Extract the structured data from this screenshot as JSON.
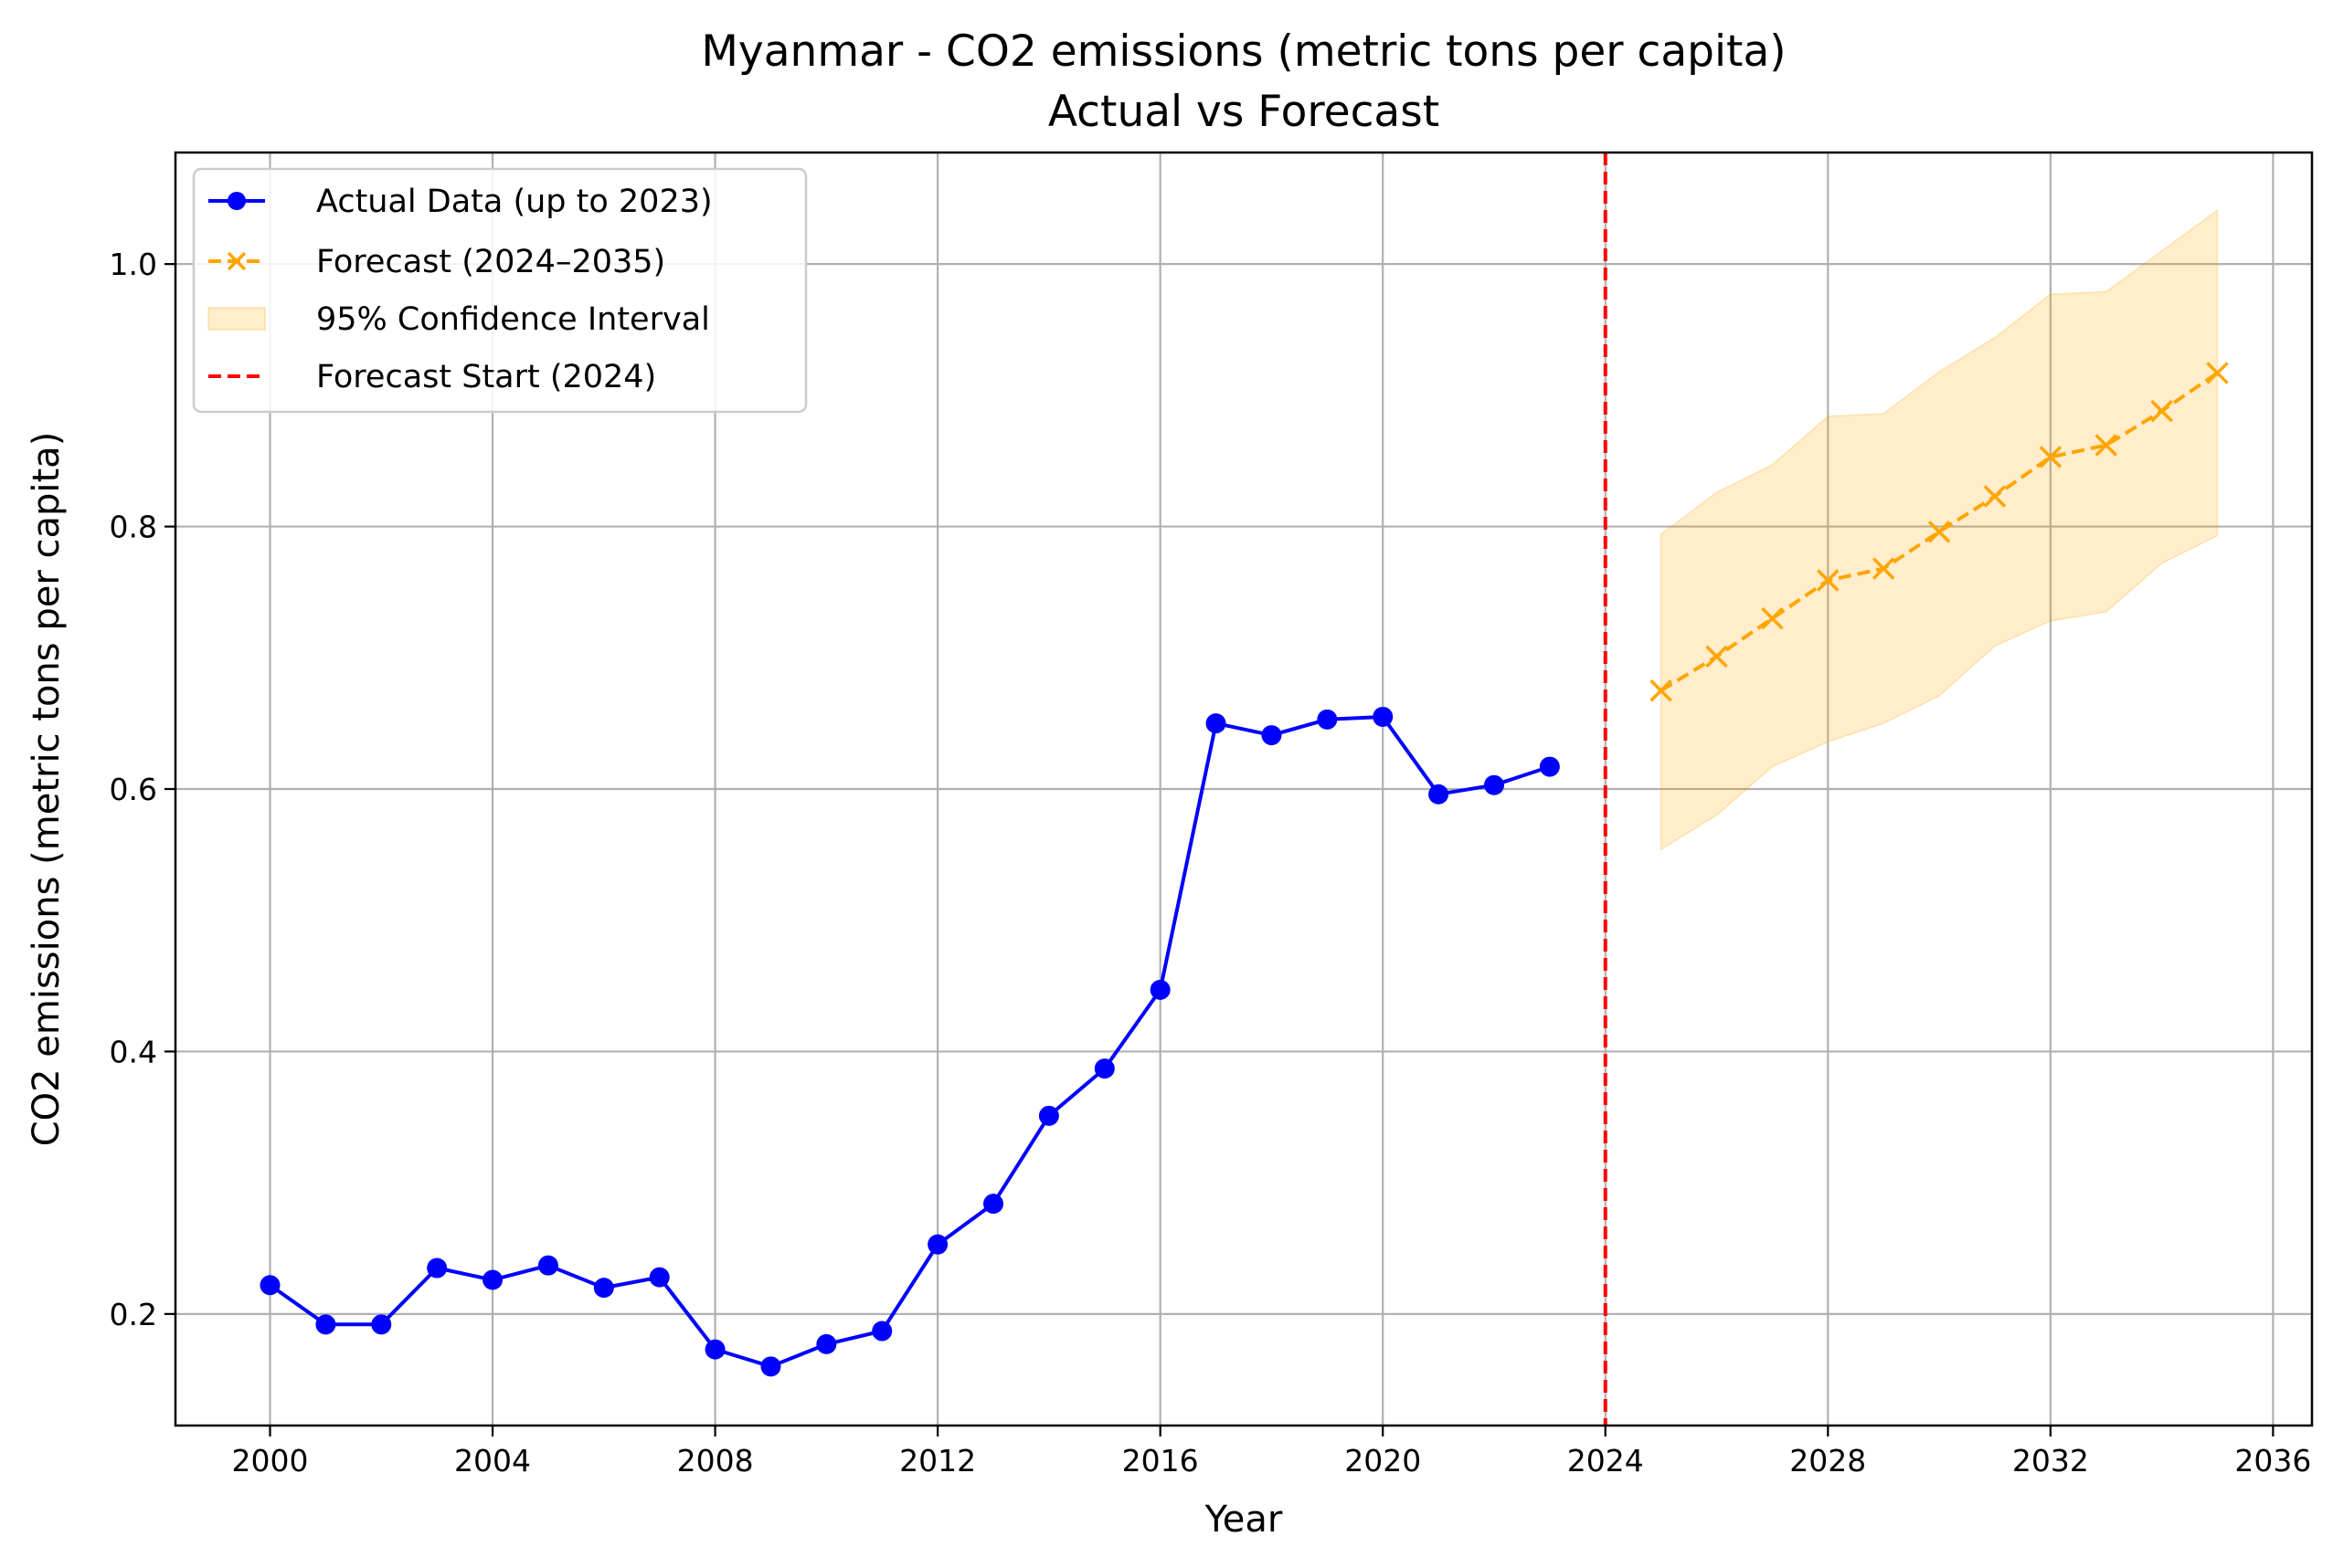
{
  "chart_data": {
    "type": "line",
    "title": "Myanmar - CO2 emissions (metric tons per capita)",
    "subtitle": "Actual vs Forecast",
    "xlabel": "Year",
    "ylabel": "CO2 emissions (metric tons per capita)",
    "xlim": [
      1998.3,
      2036.7
    ],
    "ylim": [
      0.115,
      1.085
    ],
    "grid": true,
    "legend_position": "top-left",
    "x_ticks": [
      2000,
      2004,
      2008,
      2012,
      2016,
      2020,
      2024,
      2028,
      2032,
      2036
    ],
    "x_tick_labels": [
      "2000",
      "2004",
      "2008",
      "2012",
      "2016",
      "2020",
      "2024",
      "2028",
      "2032",
      "2036"
    ],
    "y_ticks": [
      0.2,
      0.4,
      0.6,
      0.8,
      1.0
    ],
    "y_tick_labels": [
      "0.2",
      "0.4",
      "0.6",
      "0.8",
      "1.0"
    ],
    "series": [
      {
        "name": "Actual Data (up to 2023)",
        "color": "#0000ff",
        "line_style": "solid",
        "marker": "circle",
        "x": [
          2000,
          2001,
          2002,
          2003,
          2004,
          2005,
          2006,
          2007,
          2008,
          2009,
          2010,
          2011,
          2012,
          2013,
          2014,
          2015,
          2016,
          2017,
          2018,
          2019,
          2020,
          2021,
          2022,
          2023
        ],
        "y": [
          0.222,
          0.192,
          0.192,
          0.235,
          0.226,
          0.237,
          0.22,
          0.228,
          0.173,
          0.16,
          0.177,
          0.187,
          0.253,
          0.284,
          0.351,
          0.387,
          0.447,
          0.65,
          0.641,
          0.653,
          0.655,
          0.596,
          0.603,
          0.617
        ]
      },
      {
        "name": "Forecast (2024–2035)",
        "color": "#ffa500",
        "line_style": "dashed",
        "marker": "x",
        "x": [
          2025,
          2026,
          2027,
          2028,
          2029,
          2030,
          2031,
          2032,
          2033,
          2034,
          2035
        ],
        "y": [
          0.675,
          0.701,
          0.73,
          0.759,
          0.768,
          0.796,
          0.823,
          0.853,
          0.862,
          0.888,
          0.917
        ]
      }
    ],
    "confidence_interval": {
      "name": "95% Confidence Interval",
      "color": "#ffa500",
      "opacity": 0.2,
      "x": [
        2025,
        2026,
        2027,
        2028,
        2029,
        2030,
        2031,
        2032,
        2033,
        2034,
        2035
      ],
      "lower": [
        0.554,
        0.58,
        0.617,
        0.636,
        0.65,
        0.671,
        0.709,
        0.728,
        0.735,
        0.772,
        0.793
      ],
      "upper": [
        0.794,
        0.826,
        0.847,
        0.884,
        0.886,
        0.918,
        0.944,
        0.977,
        0.979,
        1.01,
        1.041
      ]
    },
    "vertical_line": {
      "name": "Forecast Start (2024)",
      "x": 2024,
      "color": "#ff0000",
      "line_style": "dashed"
    }
  }
}
